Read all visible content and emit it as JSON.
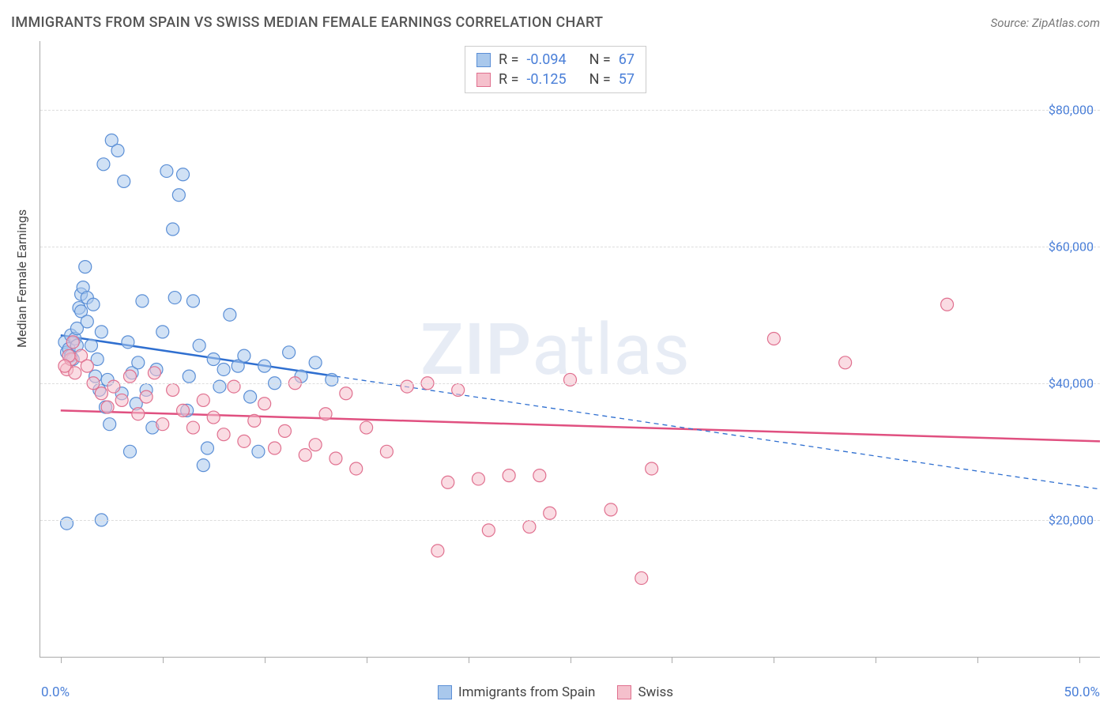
{
  "title": "IMMIGRANTS FROM SPAIN VS SWISS MEDIAN FEMALE EARNINGS CORRELATION CHART",
  "source": "Source: ZipAtlas.com",
  "y_axis_title": "Median Female Earnings",
  "x_min_label": "0.0%",
  "x_max_label": "50.0%",
  "watermark_bold": "ZIP",
  "watermark_rest": "atlas",
  "chart": {
    "type": "scatter",
    "background_color": "#ffffff",
    "grid_color": "#dddddd",
    "axis_color": "#aaaaaa",
    "tick_label_color": "#4a7fd8",
    "x_range": [
      -1,
      51
    ],
    "y_range": [
      0,
      90000
    ],
    "y_ticks": [
      20000,
      40000,
      60000,
      80000
    ],
    "y_tick_labels": [
      "$20,000",
      "$40,000",
      "$60,000",
      "$80,000"
    ],
    "x_tick_positions": [
      0,
      5,
      10,
      15,
      20,
      25,
      30,
      35,
      40,
      45,
      50
    ],
    "marker_radius": 8,
    "marker_opacity": 0.55,
    "marker_stroke_width": 1.2,
    "series": [
      {
        "name": "Immigrants from Spain",
        "color_fill": "#a9c8ec",
        "color_stroke": "#5b8fd6",
        "legend_label": "Immigrants from Spain",
        "R": "-0.094",
        "N": "67",
        "trend": {
          "x1": 0,
          "y1": 47000,
          "x2": 13.5,
          "y2": 41000,
          "dash_x2": 51,
          "dash_y2": 24500,
          "color": "#2f6fd0",
          "width": 2.5
        },
        "points": [
          [
            0.2,
            46000
          ],
          [
            0.3,
            44500
          ],
          [
            0.4,
            45000
          ],
          [
            0.5,
            47000
          ],
          [
            0.5,
            44000
          ],
          [
            0.6,
            43500
          ],
          [
            0.7,
            46500
          ],
          [
            0.8,
            48000
          ],
          [
            0.8,
            45500
          ],
          [
            0.9,
            51000
          ],
          [
            1.0,
            53000
          ],
          [
            1.0,
            50500
          ],
          [
            1.1,
            54000
          ],
          [
            1.2,
            57000
          ],
          [
            1.3,
            52500
          ],
          [
            1.3,
            49000
          ],
          [
            1.5,
            45500
          ],
          [
            1.6,
            51500
          ],
          [
            1.7,
            41000
          ],
          [
            1.8,
            43500
          ],
          [
            1.9,
            39000
          ],
          [
            2.0,
            47500
          ],
          [
            2.1,
            72000
          ],
          [
            2.2,
            36500
          ],
          [
            2.3,
            40500
          ],
          [
            2.4,
            34000
          ],
          [
            2.5,
            75500
          ],
          [
            2.8,
            74000
          ],
          [
            3.0,
            38500
          ],
          [
            3.1,
            69500
          ],
          [
            3.3,
            46000
          ],
          [
            3.4,
            30000
          ],
          [
            3.5,
            41500
          ],
          [
            3.7,
            37000
          ],
          [
            3.8,
            43000
          ],
          [
            4.0,
            52000
          ],
          [
            4.2,
            39000
          ],
          [
            4.5,
            33500
          ],
          [
            4.7,
            42000
          ],
          [
            5.0,
            47500
          ],
          [
            5.2,
            71000
          ],
          [
            5.5,
            62500
          ],
          [
            5.6,
            52500
          ],
          [
            5.8,
            67500
          ],
          [
            6.0,
            70500
          ],
          [
            6.2,
            36000
          ],
          [
            6.3,
            41000
          ],
          [
            6.5,
            52000
          ],
          [
            6.8,
            45500
          ],
          [
            7.0,
            28000
          ],
          [
            7.2,
            30500
          ],
          [
            7.5,
            43500
          ],
          [
            7.8,
            39500
          ],
          [
            8.0,
            42000
          ],
          [
            8.3,
            50000
          ],
          [
            8.7,
            42500
          ],
          [
            9.0,
            44000
          ],
          [
            9.3,
            38000
          ],
          [
            9.7,
            30000
          ],
          [
            10.0,
            42500
          ],
          [
            10.5,
            40000
          ],
          [
            11.2,
            44500
          ],
          [
            11.8,
            41000
          ],
          [
            12.5,
            43000
          ],
          [
            13.3,
            40500
          ],
          [
            0.3,
            19500
          ],
          [
            2.0,
            20000
          ]
        ]
      },
      {
        "name": "Swiss",
        "color_fill": "#f5c0cc",
        "color_stroke": "#e0708f",
        "legend_label": "Swiss",
        "R": "-0.125",
        "N": "57",
        "trend": {
          "x1": 0,
          "y1": 36000,
          "x2": 51,
          "y2": 31500,
          "dash_x2": 51,
          "dash_y2": 31500,
          "color": "#e05080",
          "width": 2.5
        },
        "points": [
          [
            0.3,
            42000
          ],
          [
            0.5,
            43500
          ],
          [
            0.7,
            41500
          ],
          [
            1.0,
            44000
          ],
          [
            1.3,
            42500
          ],
          [
            1.6,
            40000
          ],
          [
            2.0,
            38500
          ],
          [
            2.3,
            36500
          ],
          [
            2.6,
            39500
          ],
          [
            3.0,
            37500
          ],
          [
            3.4,
            41000
          ],
          [
            3.8,
            35500
          ],
          [
            4.2,
            38000
          ],
          [
            4.6,
            41500
          ],
          [
            5.0,
            34000
          ],
          [
            5.5,
            39000
          ],
          [
            6.0,
            36000
          ],
          [
            6.5,
            33500
          ],
          [
            7.0,
            37500
          ],
          [
            7.5,
            35000
          ],
          [
            8.0,
            32500
          ],
          [
            8.5,
            39500
          ],
          [
            9.0,
            31500
          ],
          [
            9.5,
            34500
          ],
          [
            10.0,
            37000
          ],
          [
            10.5,
            30500
          ],
          [
            11.0,
            33000
          ],
          [
            11.5,
            40000
          ],
          [
            12.0,
            29500
          ],
          [
            12.5,
            31000
          ],
          [
            13.0,
            35500
          ],
          [
            13.5,
            29000
          ],
          [
            14.0,
            38500
          ],
          [
            14.5,
            27500
          ],
          [
            15.0,
            33500
          ],
          [
            16.0,
            30000
          ],
          [
            17.0,
            39500
          ],
          [
            18.0,
            40000
          ],
          [
            18.5,
            15500
          ],
          [
            19.0,
            25500
          ],
          [
            19.5,
            39000
          ],
          [
            20.5,
            26000
          ],
          [
            21.0,
            18500
          ],
          [
            22.0,
            26500
          ],
          [
            23.0,
            19000
          ],
          [
            23.5,
            26500
          ],
          [
            24.0,
            21000
          ],
          [
            25.0,
            40500
          ],
          [
            27.0,
            21500
          ],
          [
            28.5,
            11500
          ],
          [
            29.0,
            27500
          ],
          [
            35.0,
            46500
          ],
          [
            38.5,
            43000
          ],
          [
            43.5,
            51500
          ],
          [
            0.4,
            44000
          ],
          [
            0.6,
            46000
          ],
          [
            0.2,
            42500
          ]
        ]
      }
    ]
  },
  "top_legend_labels": {
    "R": "R =",
    "N": "N ="
  },
  "bottom_legend": {
    "series1_label": "Immigrants from Spain",
    "series2_label": "Swiss"
  }
}
